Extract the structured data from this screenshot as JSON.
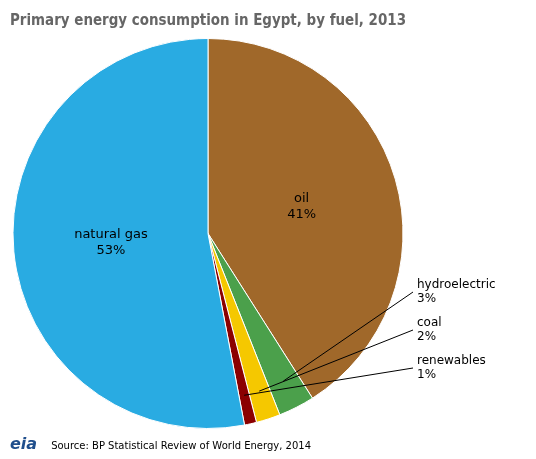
{
  "chart_data": {
    "type": "pie",
    "title": "Primary energy consumption in Egypt, by fuel, 2013",
    "categories": [
      "oil",
      "hydroelectric",
      "coal",
      "renewables",
      "natural gas"
    ],
    "values": [
      41,
      3,
      2,
      1,
      53
    ],
    "value_labels": [
      "41%",
      "3%",
      "2%",
      "1%",
      "53%"
    ],
    "colors": [
      "#A0682A",
      "#4BA04B",
      "#F5C800",
      "#8B0000",
      "#29ABE2"
    ],
    "data_labels": true,
    "annotations": [
      "Source: BP Statistical Review of World Energy, 2014",
      "eia"
    ]
  }
}
